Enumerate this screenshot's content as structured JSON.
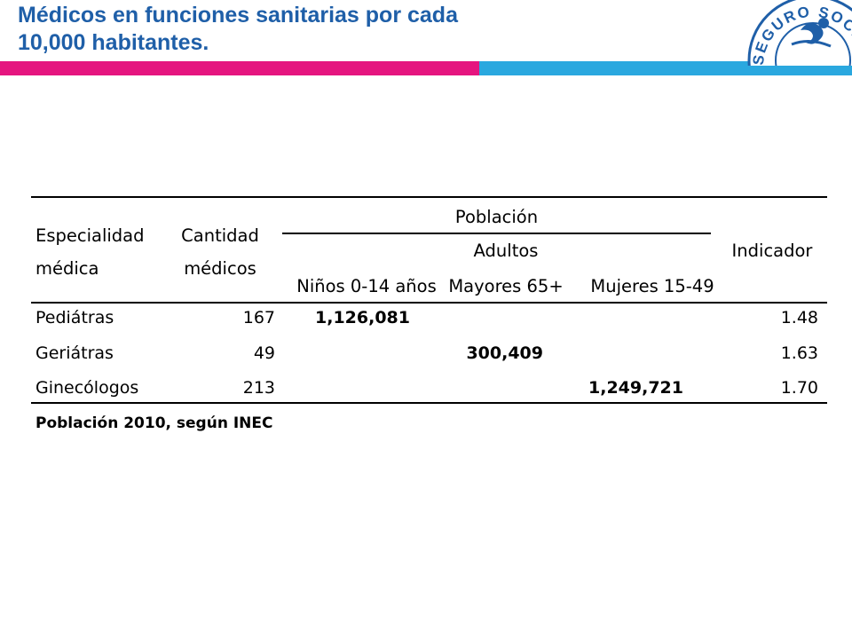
{
  "slide": {
    "title_line1": "Médicos en funciones sanitarias por cada",
    "title_line2": "10,000 habitantes.",
    "colors": {
      "title": "#1f5fa8",
      "bar_pink": "#e5157f",
      "bar_blue": "#2aa8df"
    }
  },
  "logo": {
    "text": "SEGURO SOCIAL",
    "icon": "ccss-seal-icon"
  },
  "table": {
    "headers": {
      "especialidad_1": "Especialidad",
      "especialidad_2": "médica",
      "cantidad_1": "Cantidad",
      "cantidad_2": "médicos",
      "poblacion": "Población",
      "adultos": "Adultos",
      "ninos": "Niños 0-14 años",
      "mayores": "Mayores 65+",
      "mujeres": "Mujeres 15-49",
      "indicador": "Indicador"
    },
    "rows": [
      {
        "especialidad": "Pediátras",
        "cantidad": "167",
        "ninos": "1,126,081",
        "mayores": "",
        "mujeres": "",
        "indicador": "1.48"
      },
      {
        "especialidad": "Geriátras",
        "cantidad": "49",
        "ninos": "",
        "mayores": "300,409",
        "mujeres": "",
        "indicador": "1.63"
      },
      {
        "especialidad": "Ginecólogos",
        "cantidad": "213",
        "ninos": "",
        "mayores": "",
        "mujeres": "1,249,721",
        "indicador": "1.70"
      }
    ],
    "footnote": "Población 2010, según INEC"
  }
}
